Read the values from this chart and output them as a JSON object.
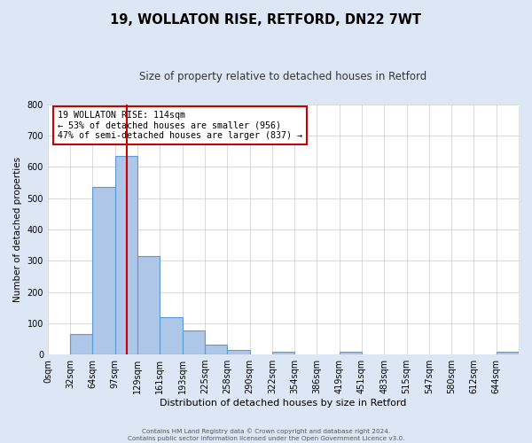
{
  "title": "19, WOLLATON RISE, RETFORD, DN22 7WT",
  "subtitle": "Size of property relative to detached houses in Retford",
  "xlabel": "Distribution of detached houses by size in Retford",
  "ylabel": "Number of detached properties",
  "bar_labels": [
    "0sqm",
    "32sqm",
    "64sqm",
    "97sqm",
    "129sqm",
    "161sqm",
    "193sqm",
    "225sqm",
    "258sqm",
    "290sqm",
    "322sqm",
    "354sqm",
    "386sqm",
    "419sqm",
    "451sqm",
    "483sqm",
    "515sqm",
    "547sqm",
    "580sqm",
    "612sqm",
    "644sqm"
  ],
  "bar_values": [
    0,
    65,
    535,
    635,
    315,
    120,
    78,
    32,
    13,
    0,
    10,
    0,
    0,
    8,
    0,
    0,
    0,
    0,
    0,
    0,
    8
  ],
  "bar_color": "#aec6e8",
  "bar_edgecolor": "#5b9bd5",
  "bar_linewidth": 0.8,
  "vline_index": 3.53,
  "vline_color": "#cc0000",
  "vline_linewidth": 1.5,
  "ylim": [
    0,
    800
  ],
  "yticks": [
    0,
    100,
    200,
    300,
    400,
    500,
    600,
    700,
    800
  ],
  "annotation_title": "19 WOLLATON RISE: 114sqm",
  "annotation_line1": "← 53% of detached houses are smaller (956)",
  "annotation_line2": "47% of semi-detached houses are larger (837) →",
  "annotation_box_edgecolor": "#cc0000",
  "footer_line1": "Contains HM Land Registry data © Crown copyright and database right 2024.",
  "footer_line2": "Contains public sector information licensed under the Open Government Licence v3.0.",
  "background_color": "#dce6f5",
  "plot_background_color": "#ffffff",
  "grid_color": "#cccccc",
  "title_fontsize": 10.5,
  "subtitle_fontsize": 8.5
}
